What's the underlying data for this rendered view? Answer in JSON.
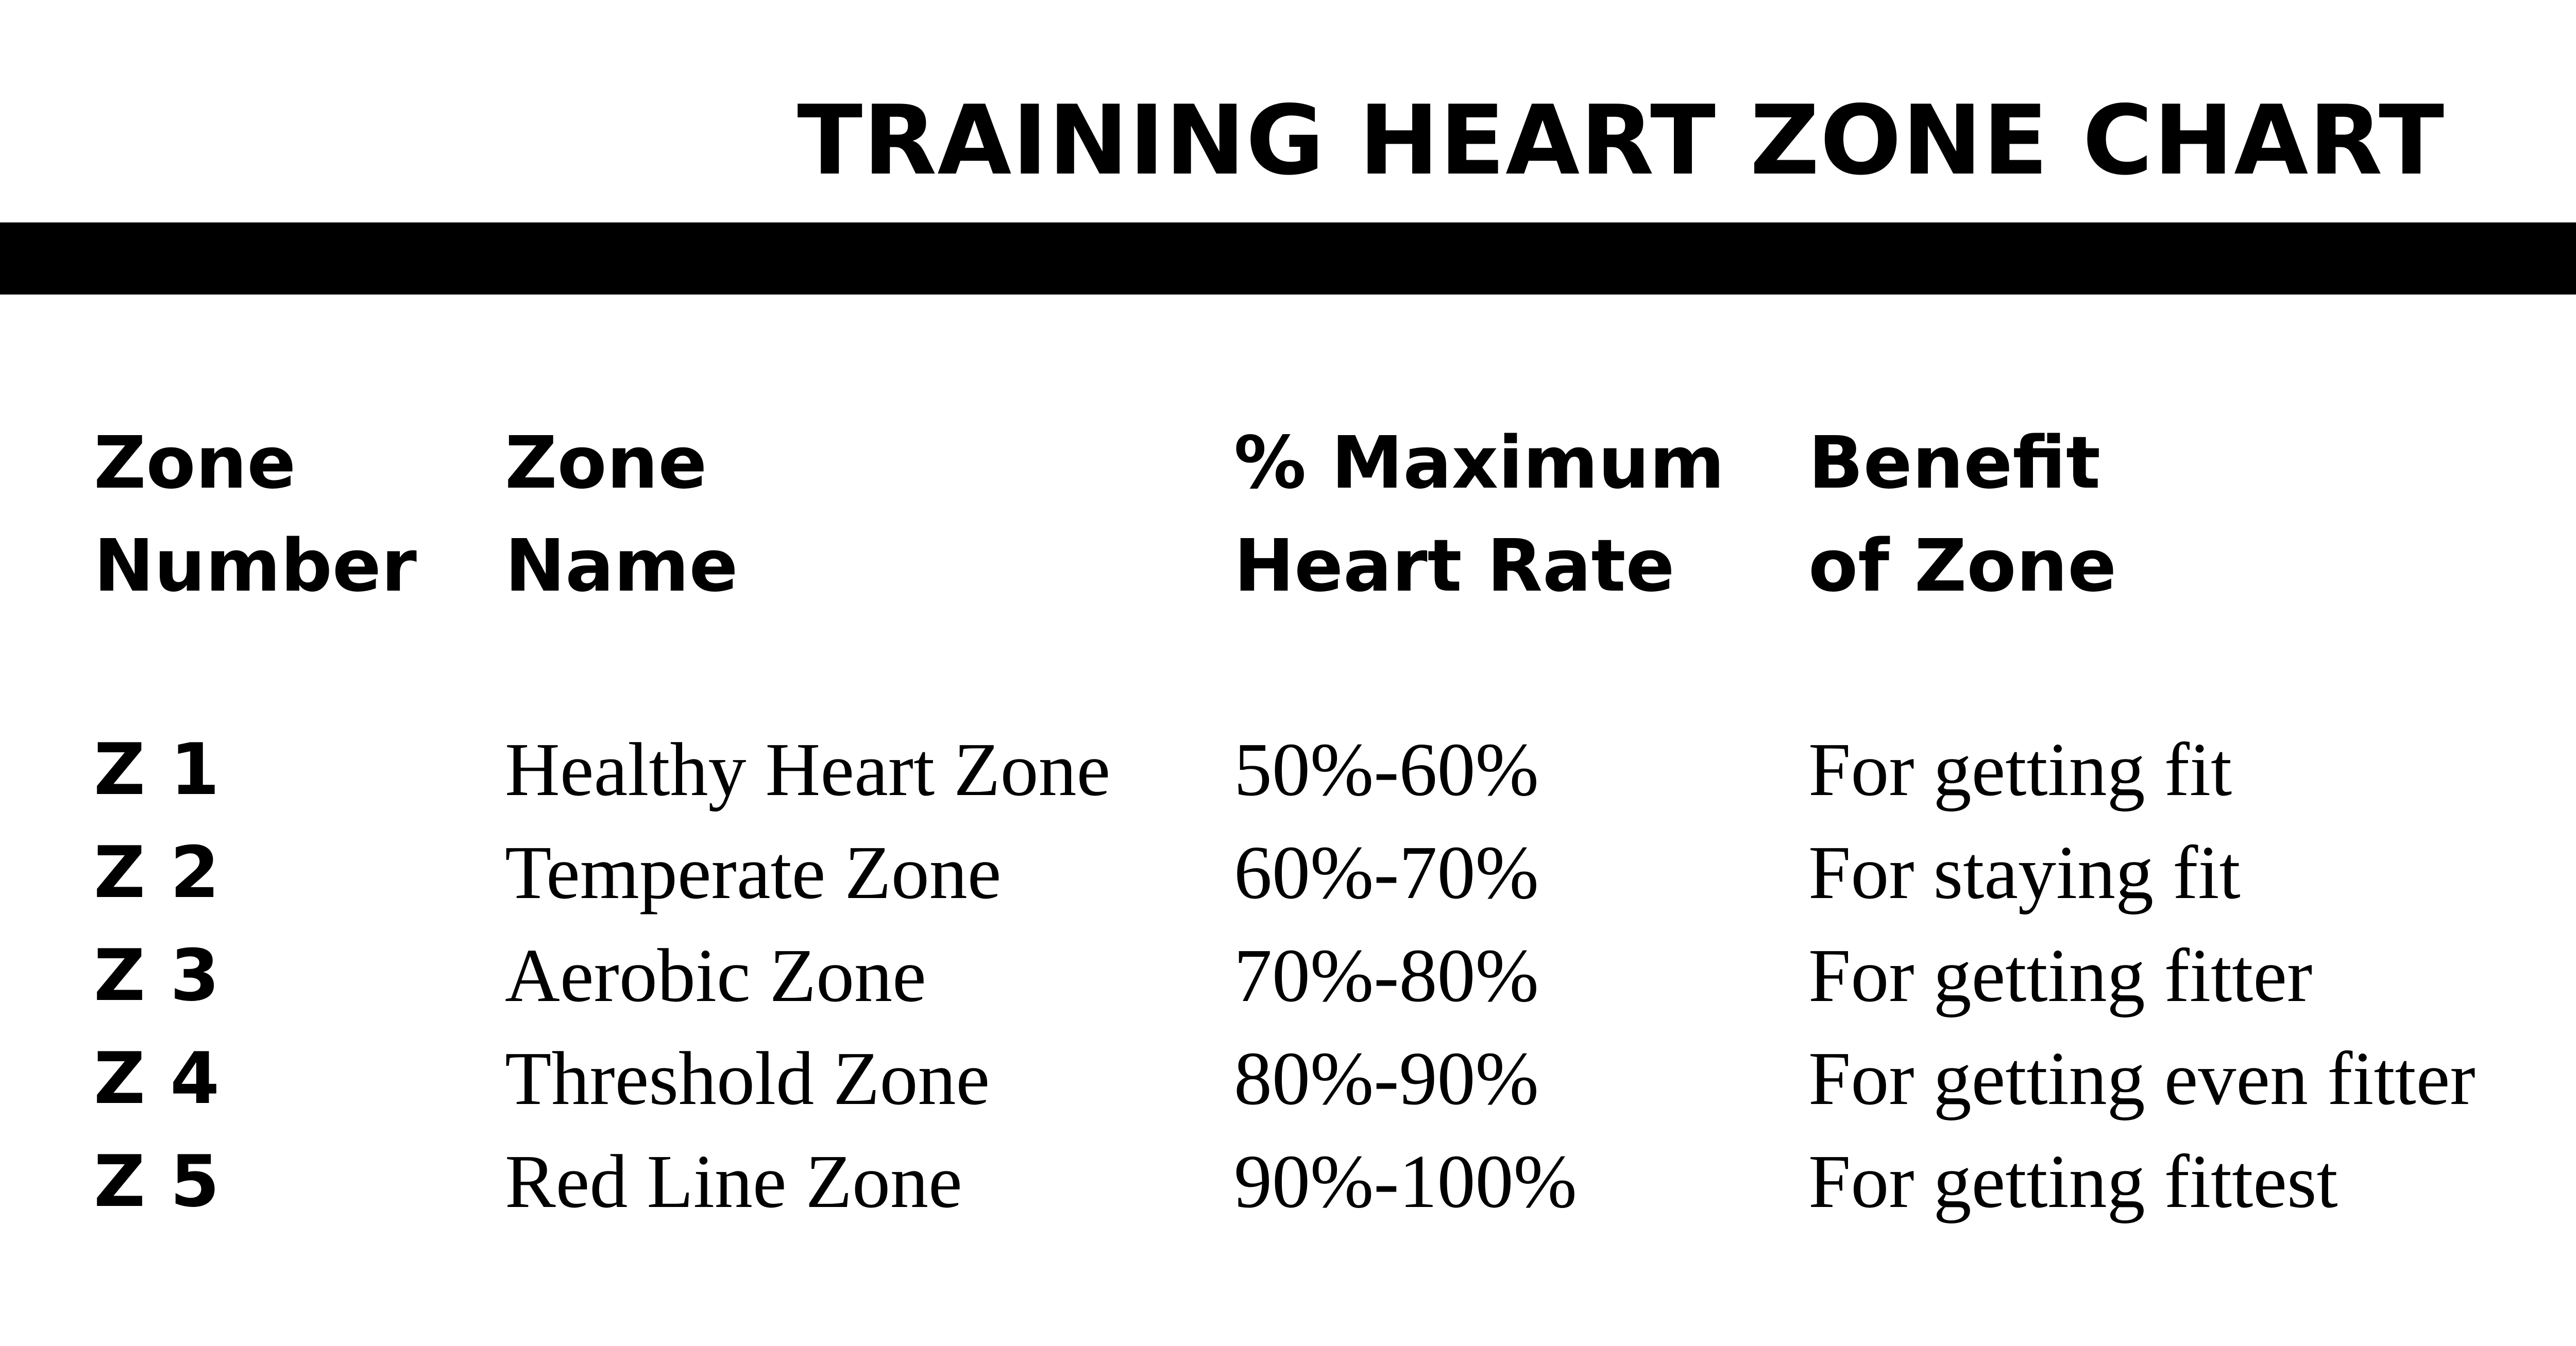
{
  "title": "TRAINING HEART ZONE CHART",
  "headers": {
    "zone_number": [
      "Zone",
      "Number"
    ],
    "zone_name": [
      "Zone",
      "Name"
    ],
    "max_hr": [
      "% Maximum",
      "Heart Rate"
    ],
    "benefit": [
      "Benefit",
      "of Zone"
    ]
  },
  "rows": [
    {
      "zone": "Z 1",
      "name": "Healthy Heart Zone",
      "range": "50%-60%",
      "benefit": "For getting fit"
    },
    {
      "zone": "Z 2",
      "name": "Temperate Zone",
      "range": "60%-70%",
      "benefit": "For staying fit"
    },
    {
      "zone": "Z 3",
      "name": "Aerobic Zone",
      "range": "70%-80%",
      "benefit": "For getting fitter"
    },
    {
      "zone": "Z 4",
      "name": "Threshold Zone",
      "range": "80%-90%",
      "benefit": "For getting even fitter"
    },
    {
      "zone": "Z 5",
      "name": "Red Line Zone",
      "range": "90%-100%",
      "benefit": "For getting fittest"
    }
  ],
  "colors": {
    "text": "#000000",
    "background": "#ffffff",
    "bar": "#000000"
  }
}
